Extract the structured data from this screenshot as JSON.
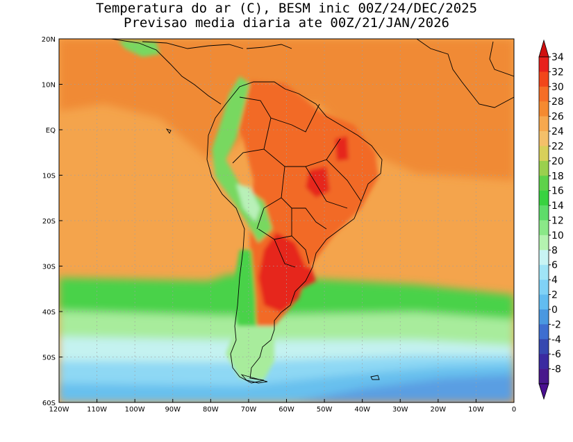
{
  "title": {
    "line1": "Temperatura do ar (C), BESM inic 00Z/24/DEC/2025",
    "line2": "Previsao media diaria ate 00Z/21/JAN/2026"
  },
  "axes": {
    "lon_labels": [
      "120W",
      "110W",
      "100W",
      "90W",
      "80W",
      "70W",
      "60W",
      "50W",
      "40W",
      "30W",
      "20W",
      "10W",
      "0"
    ],
    "lat_labels": [
      "20N",
      "10N",
      "EQ",
      "10S",
      "20S",
      "30S",
      "40S",
      "50S",
      "60S"
    ]
  },
  "colorbar": {
    "labels": [
      "34",
      "32",
      "30",
      "28",
      "26",
      "24",
      "22",
      "20",
      "18",
      "16",
      "14",
      "12",
      "10",
      "8",
      "6",
      "4",
      "2",
      "0",
      "-2",
      "-4",
      "-6",
      "-8"
    ],
    "colors": [
      "#e8201c",
      "#f2461a",
      "#f56e26",
      "#f58a30",
      "#f6a84e",
      "#f4c06a",
      "#d8d05a",
      "#9ad04e",
      "#5ed24a",
      "#38d240",
      "#5edc6a",
      "#8ae888",
      "#b4f2b0",
      "#c8f4f4",
      "#a0e4f6",
      "#80d2f6",
      "#62bcf0",
      "#4a98e0",
      "#3e6ed0",
      "#3648b0",
      "#3a2aa0",
      "#48188c"
    ],
    "top_arrow_color": "#d01010",
    "bottom_arrow_color": "#4a1090"
  },
  "map": {
    "ocean_base": "#f4a44c",
    "tropical_color": "#f08a36",
    "land_hot": "#f26a28",
    "land_very_hot": "#e6281c",
    "andes_cool": "#78d860",
    "andes_cold": "#b8f0b8",
    "band_green": "#48d24a",
    "band_lightgreen": "#a8ec9c",
    "band_cyan": "#c4f2f0",
    "band_lightblue": "#8ed8f4",
    "band_blue": "#68c0ee",
    "band_deepblue": "#5a9ee2",
    "coast_color": "#000000",
    "grid_color": "#a0a0a0"
  }
}
